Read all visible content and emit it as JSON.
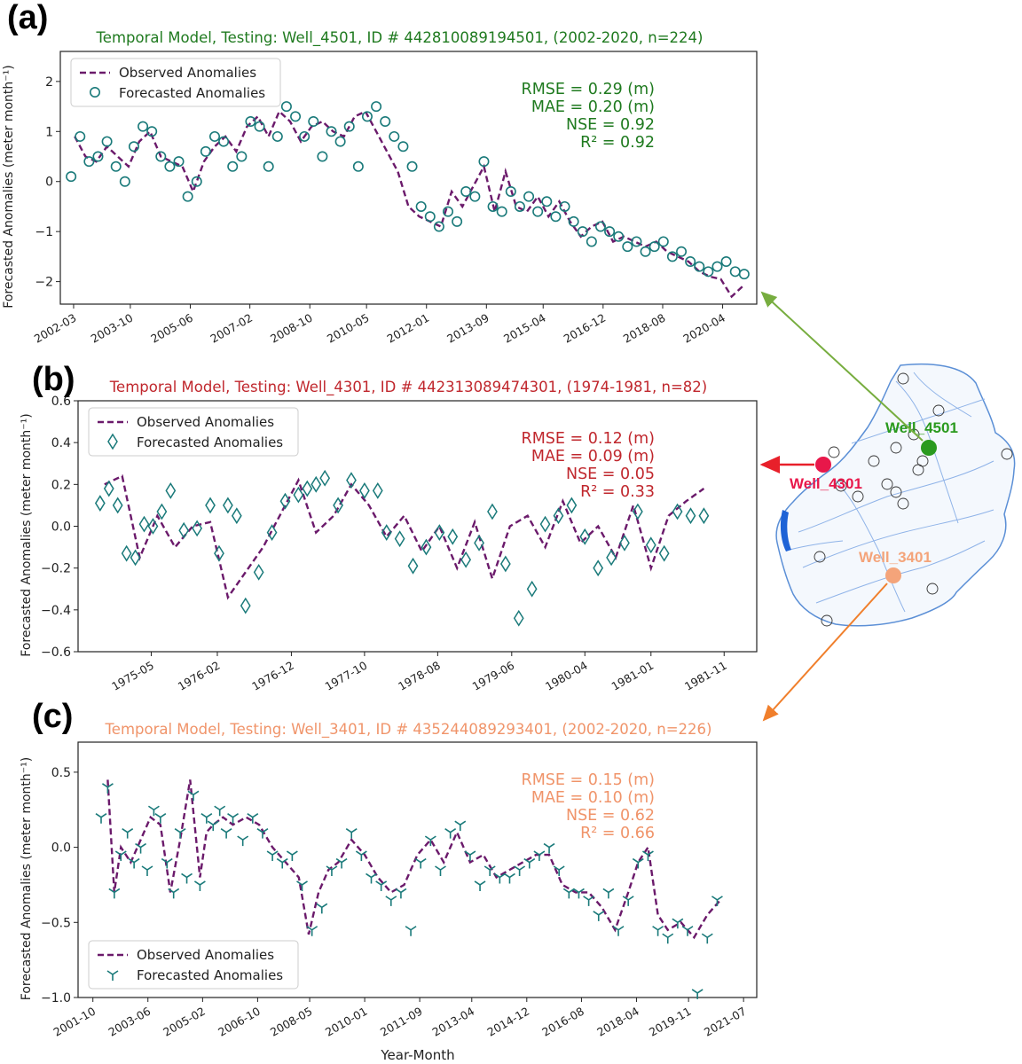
{
  "figure": {
    "xlabel": "Year-Month",
    "map": {
      "wells": [
        {
          "name": "Well_4501",
          "color": "#2a9a1e"
        },
        {
          "name": "Well_4301",
          "color": "#e8174a"
        },
        {
          "name": "Well_3401",
          "color": "#f4a47a"
        }
      ],
      "arrow_colors": [
        "#77ad3f",
        "#e8202a",
        "#f07f2c"
      ]
    }
  },
  "chart_data": [
    {
      "type": "line",
      "panel_label": "(a)",
      "title": "Temporal Model, Testing: Well_4501, ID # 442810089194501, (2002-2020, n=224)",
      "title_color": "#1f7a1f",
      "ylabel": "Forecasted Anomalies (meter month⁻¹)",
      "ylim": [
        -2.45,
        2.6
      ],
      "yticks": [
        2,
        1,
        0,
        -1,
        -2
      ],
      "yticklabels": [
        "2",
        "1",
        "0",
        "−1",
        "−2"
      ],
      "xlim": [
        2001.8,
        2021.2
      ],
      "xticks": [
        2002.17,
        2003.75,
        2005.42,
        2007.08,
        2008.75,
        2010.33,
        2012.0,
        2013.67,
        2015.25,
        2016.92,
        2018.58,
        2020.25
      ],
      "xticklabels": [
        "2002-03",
        "2003-10",
        "2005-06",
        "2007-02",
        "2008-10",
        "2010-05",
        "2012-01",
        "2013-09",
        "2015-04",
        "2016-12",
        "2018-08",
        "2020-04"
      ],
      "marker": "circle",
      "legend": [
        "Observed Anomalies",
        "Forecasted Anomalies"
      ],
      "legend_position": "upper-left",
      "stats": [
        "RMSE = 0.29 (m)",
        "MAE = 0.20 (m)",
        "NSE = 0.92",
        "R² = 0.92"
      ],
      "stats_color": "#1f7a1f",
      "series": [
        {
          "name": "Observed Anomalies",
          "color": "#6b1a6b",
          "x": [
            2002.2,
            2002.5,
            2002.8,
            2003.1,
            2003.4,
            2003.7,
            2004.0,
            2004.3,
            2004.6,
            2004.9,
            2005.2,
            2005.5,
            2005.8,
            2006.1,
            2006.4,
            2006.7,
            2007.0,
            2007.3,
            2007.6,
            2007.9,
            2008.2,
            2008.5,
            2008.8,
            2009.1,
            2009.4,
            2009.7,
            2010.0,
            2010.3,
            2010.6,
            2010.9,
            2011.2,
            2011.5,
            2011.8,
            2012.1,
            2012.4,
            2012.7,
            2013.0,
            2013.3,
            2013.6,
            2013.9,
            2014.2,
            2014.5,
            2014.8,
            2015.1,
            2015.4,
            2015.7,
            2016.0,
            2016.3,
            2016.6,
            2016.9,
            2017.2,
            2017.5,
            2017.8,
            2018.1,
            2018.4,
            2018.7,
            2019.0,
            2019.3,
            2019.6,
            2019.9,
            2020.2,
            2020.5,
            2020.8
          ],
          "y": [
            0.9,
            0.5,
            0.4,
            0.7,
            0.5,
            0.3,
            0.8,
            1.0,
            0.5,
            0.4,
            0.3,
            -0.2,
            0.4,
            0.7,
            0.9,
            0.6,
            1.1,
            1.3,
            0.9,
            1.4,
            1.2,
            0.8,
            1.1,
            1.2,
            1.0,
            0.9,
            1.3,
            1.4,
            1.0,
            0.6,
            0.2,
            -0.5,
            -0.7,
            -0.8,
            -0.9,
            -0.2,
            -0.5,
            -0.1,
            0.3,
            -0.6,
            0.2,
            -0.5,
            -0.6,
            -0.3,
            -0.7,
            -0.4,
            -0.8,
            -1.1,
            -0.9,
            -0.8,
            -1.2,
            -1.1,
            -1.2,
            -1.3,
            -1.2,
            -1.4,
            -1.5,
            -1.6,
            -1.8,
            -1.9,
            -1.95,
            -2.3,
            -2.1
          ]
        },
        {
          "name": "Forecasted Anomalies",
          "color": "#1a7a7a",
          "x": [
            2002.1,
            2002.35,
            2002.6,
            2002.85,
            2003.1,
            2003.35,
            2003.6,
            2003.85,
            2004.1,
            2004.35,
            2004.6,
            2004.85,
            2005.1,
            2005.35,
            2005.6,
            2005.85,
            2006.1,
            2006.35,
            2006.6,
            2006.85,
            2007.1,
            2007.35,
            2007.6,
            2007.85,
            2008.1,
            2008.35,
            2008.6,
            2008.85,
            2009.1,
            2009.35,
            2009.6,
            2009.85,
            2010.1,
            2010.35,
            2010.6,
            2010.85,
            2011.1,
            2011.35,
            2011.6,
            2011.85,
            2012.1,
            2012.35,
            2012.6,
            2012.85,
            2013.1,
            2013.35,
            2013.6,
            2013.85,
            2014.1,
            2014.35,
            2014.6,
            2014.85,
            2015.1,
            2015.35,
            2015.6,
            2015.85,
            2016.1,
            2016.35,
            2016.6,
            2016.85,
            2017.1,
            2017.35,
            2017.6,
            2017.85,
            2018.1,
            2018.35,
            2018.6,
            2018.85,
            2019.1,
            2019.35,
            2019.6,
            2019.85,
            2020.1,
            2020.35,
            2020.6,
            2020.85
          ],
          "y": [
            0.1,
            0.9,
            0.4,
            0.5,
            0.8,
            0.3,
            0.0,
            0.7,
            1.1,
            1.0,
            0.5,
            0.3,
            0.4,
            -0.3,
            0.0,
            0.6,
            0.9,
            0.8,
            0.3,
            0.5,
            1.2,
            1.1,
            0.3,
            0.9,
            1.5,
            1.3,
            0.9,
            1.2,
            0.5,
            1.0,
            0.8,
            1.1,
            0.3,
            1.3,
            1.5,
            1.2,
            0.9,
            0.7,
            0.3,
            -0.5,
            -0.7,
            -0.9,
            -0.6,
            -0.8,
            -0.2,
            -0.3,
            0.4,
            -0.5,
            -0.6,
            -0.2,
            -0.5,
            -0.3,
            -0.6,
            -0.4,
            -0.7,
            -0.5,
            -0.8,
            -1.0,
            -1.2,
            -0.9,
            -1.0,
            -1.1,
            -1.3,
            -1.2,
            -1.4,
            -1.3,
            -1.2,
            -1.5,
            -1.4,
            -1.6,
            -1.7,
            -1.8,
            -1.7,
            -1.6,
            -1.8,
            -1.85
          ]
        }
      ]
    },
    {
      "type": "line",
      "panel_label": "(b)",
      "title": "Temporal Model, Testing: Well_4301, ID # 442313089474301, (1974-1981, n=82)",
      "title_color": "#c0272d",
      "ylabel": "Forecasted Anomalies (meter month⁻¹)",
      "ylim": [
        -0.6,
        0.6
      ],
      "yticks": [
        0.6,
        0.4,
        0.2,
        0.0,
        -0.2,
        -0.4,
        -0.6
      ],
      "yticklabels": [
        "0.6",
        "0.4",
        "0.2",
        "0.0",
        "−0.2",
        "−0.4",
        "−0.6"
      ],
      "xlim": [
        1974.5,
        1982.2
      ],
      "xticks": [
        1975.33,
        1976.08,
        1976.92,
        1977.75,
        1978.58,
        1979.42,
        1980.25,
        1981.0,
        1981.83
      ],
      "xticklabels": [
        "1975-05",
        "1976-02",
        "1976-12",
        "1977-10",
        "1978-08",
        "1979-06",
        "1980-04",
        "1981-01",
        "1981-11"
      ],
      "marker": "diamond",
      "legend": [
        "Observed Anomalies",
        "Forecasted Anomalies"
      ],
      "legend_position": "upper-left",
      "stats": [
        "RMSE = 0.12 (m)",
        "MAE = 0.09 (m)",
        "NSE = 0.05",
        "R² = 0.33"
      ],
      "stats_color": "#c0272d",
      "series": [
        {
          "name": "Observed Anomalies",
          "color": "#6b1a6b",
          "x": [
            1974.8,
            1975.0,
            1975.2,
            1975.4,
            1975.6,
            1975.8,
            1976.0,
            1976.2,
            1976.6,
            1977.0,
            1977.2,
            1977.4,
            1977.6,
            1977.8,
            1978.0,
            1978.2,
            1978.4,
            1978.6,
            1978.8,
            1979.0,
            1979.2,
            1979.4,
            1979.6,
            1979.8,
            1980.0,
            1980.2,
            1980.4,
            1980.6,
            1980.8,
            1981.0,
            1981.2,
            1981.4,
            1981.6
          ],
          "y": [
            0.2,
            0.24,
            -0.15,
            0.05,
            -0.1,
            0.0,
            0.02,
            -0.34,
            -0.1,
            0.22,
            -0.03,
            0.05,
            0.2,
            0.1,
            -0.05,
            0.05,
            -0.12,
            0.0,
            -0.2,
            0.02,
            -0.25,
            0.0,
            0.05,
            -0.1,
            0.12,
            -0.08,
            0.0,
            -0.15,
            0.1,
            -0.2,
            0.05,
            0.12,
            0.18
          ]
        },
        {
          "name": "Forecasted Anomalies",
          "color": "#1a7a7a",
          "x": [
            1974.75,
            1974.85,
            1974.95,
            1975.05,
            1975.15,
            1975.25,
            1975.35,
            1975.45,
            1975.55,
            1975.7,
            1975.85,
            1976.0,
            1976.1,
            1976.2,
            1976.3,
            1976.4,
            1976.55,
            1976.7,
            1976.85,
            1977.0,
            1977.1,
            1977.2,
            1977.3,
            1977.45,
            1977.6,
            1977.75,
            1977.9,
            1978.0,
            1978.15,
            1978.3,
            1978.45,
            1978.6,
            1978.75,
            1978.9,
            1979.05,
            1979.2,
            1979.35,
            1979.5,
            1979.65,
            1979.8,
            1979.95,
            1980.1,
            1980.25,
            1980.4,
            1980.55,
            1980.7,
            1980.85,
            1981.0,
            1981.15,
            1981.3,
            1981.45,
            1981.6
          ],
          "y": [
            0.11,
            0.18,
            0.1,
            -0.13,
            -0.15,
            0.01,
            0.0,
            0.07,
            0.17,
            -0.02,
            -0.01,
            0.1,
            -0.13,
            0.1,
            0.05,
            -0.38,
            -0.22,
            -0.03,
            0.12,
            0.15,
            0.18,
            0.2,
            0.23,
            0.1,
            0.22,
            0.17,
            0.17,
            -0.03,
            -0.06,
            -0.19,
            -0.1,
            -0.03,
            -0.05,
            -0.16,
            -0.08,
            0.07,
            -0.18,
            -0.44,
            -0.3,
            0.01,
            0.05,
            0.1,
            -0.05,
            -0.2,
            -0.15,
            -0.08,
            0.07,
            -0.09,
            -0.13,
            0.07,
            0.05,
            0.05
          ]
        }
      ]
    },
    {
      "type": "line",
      "panel_label": "(c)",
      "title": "Temporal Model, Testing: Well_3401, ID # 435244089293401, (2002-2020, n=226)",
      "title_color": "#f0946a",
      "ylabel": "Forecasted Anomalies (meter month⁻¹)",
      "xlabel": "Year-Month",
      "ylim": [
        -1.0,
        0.7
      ],
      "yticks": [
        0.5,
        0.0,
        -0.5,
        -1.0
      ],
      "yticklabels": [
        "0.5",
        "0.0",
        "−0.5",
        "−1.0"
      ],
      "xlim": [
        2001.3,
        2021.9
      ],
      "xticks": [
        2001.75,
        2003.42,
        2005.08,
        2006.75,
        2008.33,
        2010.0,
        2011.67,
        2013.25,
        2014.92,
        2016.58,
        2018.25,
        2019.83,
        2021.5
      ],
      "xticklabels": [
        "2001-10",
        "2003-06",
        "2005-02",
        "2006-10",
        "2008-05",
        "2010-01",
        "2011-09",
        "2013-04",
        "2014-12",
        "2016-08",
        "2018-04",
        "2019-11",
        "2021-07"
      ],
      "marker": "tri",
      "legend": [
        "Observed Anomalies",
        "Forecasted Anomalies"
      ],
      "legend_position": "lower-left",
      "stats": [
        "RMSE = 0.15 (m)",
        "MAE = 0.10 (m)",
        "NSE = 0.62",
        "R² = 0.66"
      ],
      "stats_color": "#f0946a",
      "series": [
        {
          "name": "Observed Anomalies",
          "color": "#6b1a6b",
          "x": [
            2002.2,
            2002.4,
            2002.6,
            2002.9,
            2003.2,
            2003.5,
            2003.8,
            2004.1,
            2004.4,
            2004.7,
            2005.0,
            2005.2,
            2005.4,
            2005.7,
            2006.0,
            2006.4,
            2006.8,
            2007.2,
            2007.6,
            2008.0,
            2008.3,
            2008.6,
            2008.9,
            2009.2,
            2009.6,
            2010.0,
            2010.4,
            2010.8,
            2011.2,
            2011.6,
            2012.0,
            2012.4,
            2012.8,
            2013.2,
            2013.6,
            2014.0,
            2014.4,
            2014.8,
            2015.2,
            2015.6,
            2016.0,
            2016.4,
            2016.8,
            2017.2,
            2017.6,
            2018.0,
            2018.3,
            2018.6,
            2018.9,
            2019.2,
            2019.6,
            2020.0,
            2020.4,
            2020.8
          ],
          "y": [
            0.45,
            -0.3,
            0.0,
            -0.1,
            0.05,
            0.2,
            0.15,
            -0.3,
            0.05,
            0.45,
            -0.2,
            0.1,
            0.15,
            0.2,
            0.15,
            0.2,
            0.15,
            0.0,
            -0.1,
            -0.2,
            -0.58,
            -0.3,
            -0.15,
            -0.1,
            0.05,
            -0.05,
            -0.2,
            -0.3,
            -0.25,
            -0.05,
            0.05,
            -0.1,
            0.1,
            -0.1,
            -0.05,
            -0.2,
            -0.15,
            -0.1,
            -0.05,
            -0.05,
            -0.25,
            -0.3,
            -0.3,
            -0.4,
            -0.55,
            -0.3,
            -0.1,
            0.0,
            -0.45,
            -0.55,
            -0.5,
            -0.6,
            -0.45,
            -0.35
          ]
        },
        {
          "name": "Forecasted Anomalies",
          "color": "#1a7a7a",
          "x": [
            2002.0,
            2002.2,
            2002.4,
            2002.6,
            2002.8,
            2003.0,
            2003.2,
            2003.4,
            2003.6,
            2003.8,
            2004.0,
            2004.2,
            2004.4,
            2004.6,
            2004.8,
            2005.0,
            2005.2,
            2005.4,
            2005.6,
            2005.8,
            2006.0,
            2006.3,
            2006.6,
            2006.9,
            2007.2,
            2007.5,
            2007.8,
            2008.1,
            2008.4,
            2008.7,
            2009.0,
            2009.3,
            2009.6,
            2009.9,
            2010.2,
            2010.5,
            2010.8,
            2011.1,
            2011.4,
            2011.7,
            2012.0,
            2012.3,
            2012.6,
            2012.9,
            2013.2,
            2013.5,
            2013.8,
            2014.1,
            2014.4,
            2014.7,
            2015.0,
            2015.3,
            2015.6,
            2015.9,
            2016.2,
            2016.5,
            2016.8,
            2017.1,
            2017.4,
            2017.7,
            2018.0,
            2018.3,
            2018.6,
            2018.9,
            2019.2,
            2019.5,
            2019.8,
            2020.1,
            2020.4,
            2020.7
          ],
          "y": [
            0.2,
            0.4,
            -0.3,
            -0.05,
            0.1,
            -0.1,
            0.0,
            -0.15,
            0.25,
            0.2,
            -0.1,
            -0.3,
            0.1,
            -0.2,
            0.35,
            -0.25,
            0.2,
            0.15,
            0.25,
            0.1,
            0.2,
            0.05,
            0.2,
            0.1,
            -0.05,
            -0.1,
            -0.05,
            -0.25,
            -0.55,
            -0.4,
            -0.15,
            -0.1,
            0.1,
            -0.05,
            -0.2,
            -0.25,
            -0.35,
            -0.3,
            -0.55,
            -0.1,
            0.05,
            -0.15,
            0.1,
            0.15,
            -0.05,
            -0.25,
            -0.15,
            -0.2,
            -0.2,
            -0.15,
            -0.1,
            -0.05,
            0.0,
            -0.15,
            -0.3,
            -0.3,
            -0.35,
            -0.45,
            -0.3,
            -0.55,
            -0.35,
            -0.1,
            -0.05,
            -0.55,
            -0.6,
            -0.5,
            -0.55,
            -0.97,
            -0.6,
            -0.35
          ]
        }
      ]
    }
  ]
}
